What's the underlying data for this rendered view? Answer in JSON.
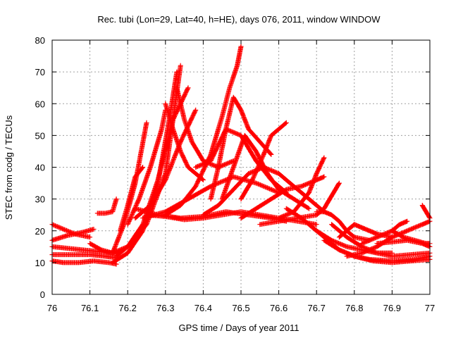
{
  "chart_data": {
    "type": "scatter",
    "title": "Rec. tubi (Lon=29, Lat=40, h=HE), days 076, 2011, window WINDOW",
    "xlabel": "GPS time / Days of year 2011",
    "ylabel": "STEC from codg / TECUs",
    "xlim": [
      76,
      77
    ],
    "ylim": [
      0,
      80
    ],
    "xticks": [
      76,
      76.1,
      76.2,
      76.3,
      76.4,
      76.5,
      76.6,
      76.7,
      76.8,
      76.9,
      77
    ],
    "xtick_labels": [
      "76",
      "76.1",
      "76.2",
      "76.3",
      "76.4",
      "76.5",
      "76.6",
      "76.7",
      "76.8",
      "76.9",
      "77"
    ],
    "yticks": [
      0,
      10,
      20,
      30,
      40,
      50,
      60,
      70,
      80
    ],
    "ytick_labels": [
      "0",
      "10",
      "20",
      "30",
      "40",
      "50",
      "60",
      "70",
      "80"
    ],
    "grid": true,
    "marker": "+",
    "marker_color": "#ff0000",
    "series": [
      {
        "x": [
          76.0,
          76.03,
          76.06,
          76.1
        ],
        "y": [
          22,
          20.5,
          19,
          18
        ]
      },
      {
        "x": [
          76.0,
          76.04,
          76.08,
          76.11
        ],
        "y": [
          17,
          18.5,
          19.5,
          20.5
        ]
      },
      {
        "x": [
          76.0,
          76.04,
          76.08,
          76.12,
          76.16,
          76.18
        ],
        "y": [
          15,
          14.5,
          14,
          13.5,
          13,
          13
        ]
      },
      {
        "x": [
          76.0,
          76.05,
          76.1,
          76.14,
          76.17
        ],
        "y": [
          12.5,
          12.5,
          12.5,
          12,
          11.5
        ]
      },
      {
        "x": [
          76.0,
          76.03,
          76.07,
          76.11,
          76.15,
          76.17
        ],
        "y": [
          10.5,
          10,
          10,
          10.5,
          10,
          9.5
        ]
      },
      {
        "x": [
          76.1,
          76.13,
          76.16,
          76.2,
          76.25,
          76.3,
          76.32,
          76.34
        ],
        "y": [
          16,
          14,
          13,
          15,
          22,
          38,
          55,
          72
        ]
      },
      {
        "x": [
          76.16,
          76.2,
          76.24,
          76.28,
          76.31,
          76.33
        ],
        "y": [
          10,
          13,
          20,
          35,
          55,
          70
        ]
      },
      {
        "x": [
          76.12,
          76.14,
          76.16,
          76.17
        ],
        "y": [
          25.5,
          25.5,
          26,
          30
        ]
      },
      {
        "x": [
          76.17,
          76.2,
          76.24,
          76.28,
          76.32,
          76.36
        ],
        "y": [
          12,
          15,
          22,
          36,
          55,
          65
        ]
      },
      {
        "x": [
          76.16,
          76.19,
          76.22,
          76.25
        ],
        "y": [
          13,
          22,
          35,
          54
        ]
      },
      {
        "x": [
          76.18,
          76.2,
          76.22,
          76.24
        ],
        "y": [
          20,
          28,
          37,
          40
        ]
      },
      {
        "x": [
          76.2,
          76.23,
          76.26,
          76.29,
          76.3
        ],
        "y": [
          22,
          30,
          40,
          52,
          58
        ]
      },
      {
        "x": [
          76.22,
          76.26,
          76.3,
          76.34,
          76.38
        ],
        "y": [
          24,
          28,
          36,
          48,
          58
        ]
      },
      {
        "x": [
          76.3,
          76.32,
          76.34,
          76.36,
          76.38,
          76.4
        ],
        "y": [
          60,
          52,
          45,
          40,
          38,
          36
        ]
      },
      {
        "x": [
          76.33,
          76.35,
          76.37,
          76.4,
          76.44,
          76.48
        ],
        "y": [
          65,
          55,
          48,
          42,
          40,
          42
        ]
      },
      {
        "x": [
          76.24,
          76.3,
          76.36,
          76.42,
          76.48,
          76.54,
          76.6
        ],
        "y": [
          24,
          26,
          30,
          34,
          37,
          35,
          32
        ]
      },
      {
        "x": [
          76.22,
          76.28,
          76.34,
          76.4,
          76.46,
          76.52,
          76.58,
          76.62
        ],
        "y": [
          27,
          25,
          24,
          24.5,
          26,
          25,
          24,
          23
        ]
      },
      {
        "x": [
          76.25,
          76.3,
          76.35,
          76.4,
          76.45,
          76.5,
          76.55,
          76.6,
          76.65,
          76.7
        ],
        "y": [
          25,
          24.5,
          23.5,
          24,
          25,
          26,
          25,
          24,
          23,
          22
        ]
      },
      {
        "x": [
          76.3,
          76.34,
          76.38,
          76.42,
          76.45,
          76.47,
          76.49,
          76.5
        ],
        "y": [
          25,
          28,
          34,
          44,
          56,
          65,
          72,
          78
        ]
      },
      {
        "x": [
          76.42,
          76.44,
          76.46,
          76.48,
          76.5,
          76.52,
          76.55,
          76.58
        ],
        "y": [
          30,
          40,
          52,
          62,
          58,
          52,
          48,
          44
        ]
      },
      {
        "x": [
          76.38,
          76.42,
          76.46,
          76.5,
          76.54,
          76.58,
          76.62
        ],
        "y": [
          40,
          42,
          52,
          50,
          42,
          36,
          32
        ]
      },
      {
        "x": [
          76.45,
          76.48,
          76.51,
          76.54,
          76.57,
          76.6,
          76.64,
          76.68
        ],
        "y": [
          30,
          40,
          50,
          45,
          38,
          33,
          30,
          27
        ]
      },
      {
        "x": [
          76.5,
          76.53,
          76.56,
          76.58,
          76.6,
          76.62
        ],
        "y": [
          30,
          36,
          44,
          50,
          52,
          54
        ]
      },
      {
        "x": [
          76.4,
          76.44,
          76.48,
          76.52,
          76.56,
          76.6,
          76.64,
          76.68,
          76.72
        ],
        "y": [
          25,
          28,
          33,
          38,
          40,
          38,
          34,
          30,
          26
        ]
      },
      {
        "x": [
          76.5,
          76.54,
          76.58,
          76.62,
          76.66,
          76.7,
          76.72
        ],
        "y": [
          24,
          27,
          30,
          33,
          34,
          36,
          37
        ]
      },
      {
        "x": [
          76.55,
          76.6,
          76.65,
          76.7,
          76.72,
          76.74,
          76.76
        ],
        "y": [
          22,
          23,
          24,
          25,
          27,
          31,
          35
        ]
      },
      {
        "x": [
          76.6,
          76.64,
          76.68,
          76.7,
          76.72
        ],
        "y": [
          24,
          26,
          32,
          38,
          43
        ]
      },
      {
        "x": [
          76.7,
          76.72,
          76.74,
          76.76,
          76.78,
          76.8,
          76.84
        ],
        "y": [
          26,
          26,
          25,
          23,
          20,
          18,
          17
        ]
      },
      {
        "x": [
          76.62,
          76.66,
          76.7,
          76.74,
          76.78,
          76.82,
          76.86,
          76.9
        ],
        "y": [
          27,
          24,
          20,
          17,
          15,
          14,
          13,
          13
        ]
      },
      {
        "x": [
          76.68,
          76.72,
          76.76,
          76.8,
          76.84,
          76.9,
          76.96,
          77.0
        ],
        "y": [
          22,
          18,
          14,
          12,
          11,
          10.5,
          11,
          12
        ]
      },
      {
        "x": [
          76.72,
          76.76,
          76.8,
          76.85,
          76.9,
          76.95,
          77.0
        ],
        "y": [
          17,
          14,
          12,
          10.5,
          10,
          10.5,
          11
        ]
      },
      {
        "x": [
          76.74,
          76.78,
          76.82,
          76.86,
          76.9,
          76.95,
          77.0
        ],
        "y": [
          22,
          18,
          15,
          13,
          12,
          12.5,
          13
        ]
      },
      {
        "x": [
          76.76,
          76.78,
          76.8,
          76.82,
          76.84,
          76.86,
          76.9
        ],
        "y": [
          18,
          20,
          22,
          21,
          20,
          19,
          18
        ]
      },
      {
        "x": [
          76.78,
          76.82,
          76.86,
          76.9,
          76.94,
          76.98,
          77.0
        ],
        "y": [
          12,
          13,
          15,
          18,
          20,
          22,
          23
        ]
      },
      {
        "x": [
          76.82,
          76.86,
          76.9,
          76.92,
          76.94
        ],
        "y": [
          16,
          18,
          20,
          22,
          23
        ]
      },
      {
        "x": [
          76.86,
          76.9,
          76.94,
          76.98,
          77.0
        ],
        "y": [
          16,
          16.5,
          17,
          16,
          15
        ]
      },
      {
        "x": [
          76.9,
          76.93,
          76.96,
          76.99,
          77.0
        ],
        "y": [
          20,
          18,
          17,
          16,
          16
        ]
      },
      {
        "x": [
          76.98,
          76.99,
          77.0
        ],
        "y": [
          28,
          26,
          24
        ]
      }
    ]
  }
}
